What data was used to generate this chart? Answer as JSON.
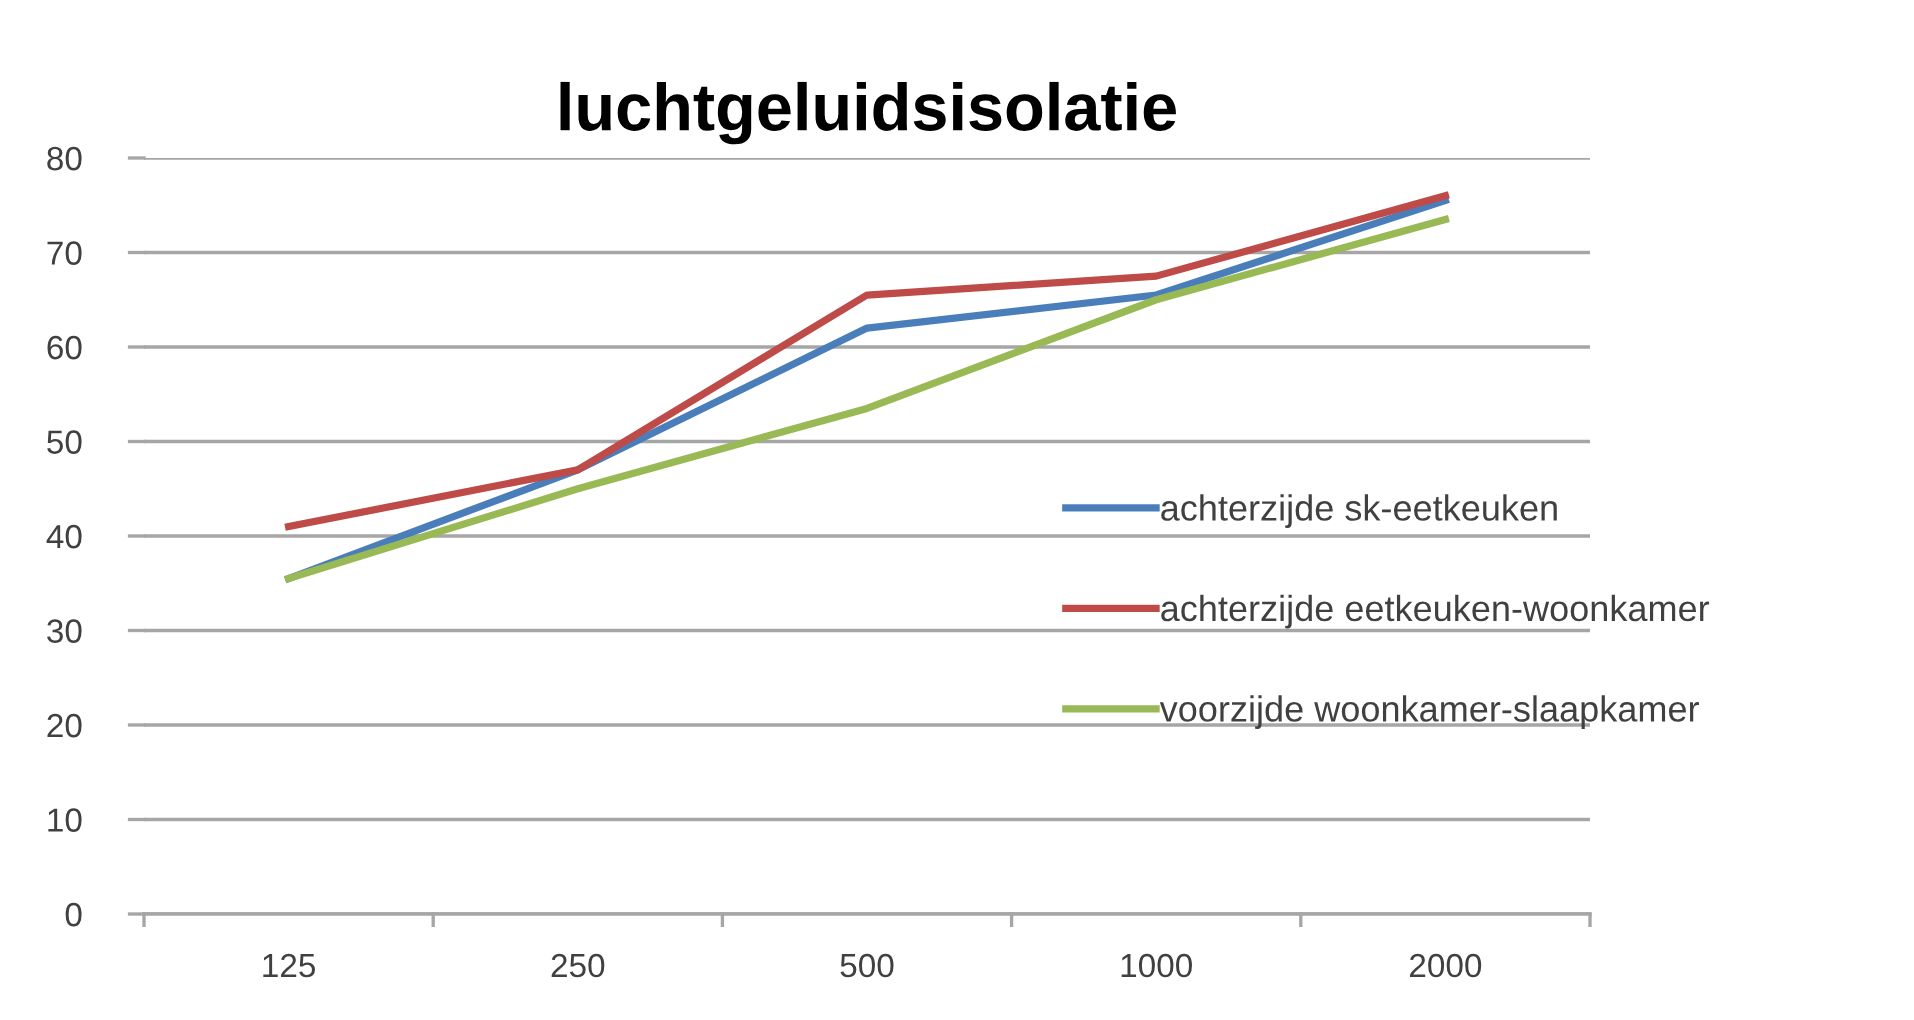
{
  "chart_data": {
    "type": "line",
    "title": "luchtgeluidsisolatie",
    "categories": [
      "125",
      "250",
      "500",
      "1000",
      "2000"
    ],
    "series": [
      {
        "name": "achterzijde sk-eetkeuken",
        "color": "#4a7ebb",
        "values": [
          35.5,
          47,
          62,
          65.5,
          75.5
        ]
      },
      {
        "name": "achterzijde eetkeuken-woonkamer",
        "color": "#be4b48",
        "values": [
          41,
          47,
          65.5,
          67.5,
          76
        ]
      },
      {
        "name": "voorzijde woonkamer-slaapkamer",
        "color": "#98b954",
        "values": [
          35.5,
          45,
          53.5,
          65,
          73.5
        ]
      }
    ],
    "ylim": [
      0,
      80
    ],
    "yticks": [
      0,
      10,
      20,
      30,
      40,
      50,
      60,
      70,
      80
    ],
    "grid": "y",
    "legend": "right",
    "marker": "none",
    "line_style": "solid"
  }
}
